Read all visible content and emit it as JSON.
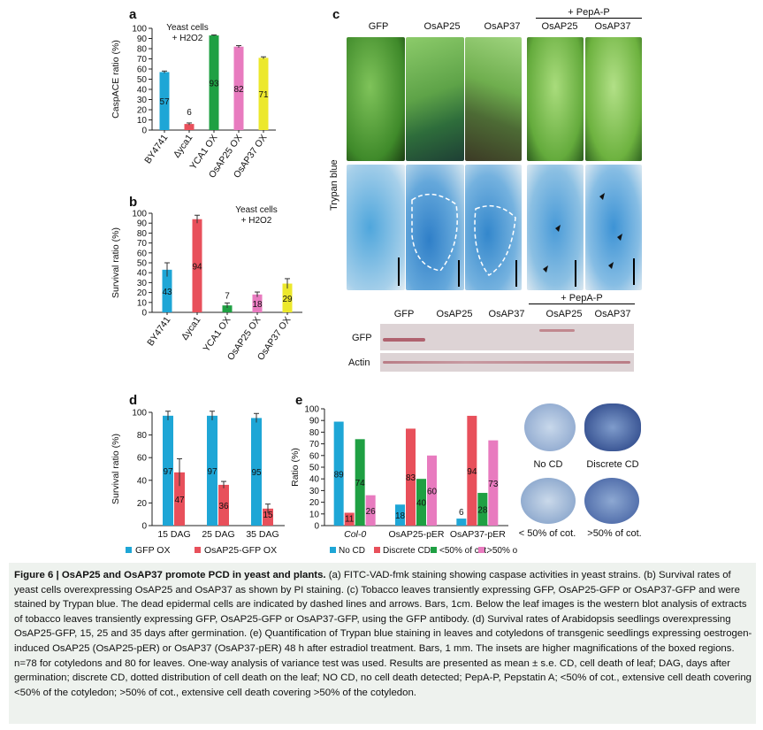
{
  "panels": {
    "a": {
      "label": "a"
    },
    "b": {
      "label": "b"
    },
    "c": {
      "label": "c"
    },
    "d": {
      "label": "d"
    },
    "e": {
      "label": "e"
    }
  },
  "chart_data": [
    {
      "id": "a",
      "type": "bar",
      "annotation": [
        "Yeast cells",
        "+ H2O2"
      ],
      "ylabel": "CaspACE ratio (%)",
      "ylim": [
        0,
        100
      ],
      "yticks": [
        0,
        10,
        20,
        30,
        40,
        50,
        60,
        70,
        80,
        90,
        100
      ],
      "categories": [
        "BY4741",
        "Δyca1",
        "YCA1 OX",
        "OsAP25 OX",
        "OsAP37 OX"
      ],
      "values": [
        57,
        6,
        93,
        82,
        71
      ],
      "errors": [
        1,
        1,
        0.5,
        1,
        1
      ],
      "colors": [
        "#1ea6d6",
        "#e8505b",
        "#1fa043",
        "#e87bbf",
        "#ece82c"
      ]
    },
    {
      "id": "b",
      "type": "bar",
      "annotation": [
        "Yeast cells",
        "+ H2O2"
      ],
      "ylabel": "Survival ratio (%)",
      "ylim": [
        0,
        100
      ],
      "yticks": [
        0,
        10,
        20,
        30,
        40,
        50,
        60,
        70,
        80,
        90,
        100
      ],
      "categories": [
        "BY4741",
        "Δyca1",
        "YCA1 OX",
        "OsAP25 OX",
        "OsAP37 OX"
      ],
      "values": [
        43,
        94,
        7,
        18,
        29
      ],
      "errors": [
        7,
        4,
        2.5,
        2.5,
        5
      ],
      "colors": [
        "#1ea6d6",
        "#e8505b",
        "#1fa043",
        "#e87bbf",
        "#ece82c"
      ]
    },
    {
      "id": "d",
      "type": "bar",
      "ylabel": "Survival ratio (%)",
      "ylim": [
        0,
        100
      ],
      "yticks": [
        0,
        20,
        40,
        60,
        80,
        100
      ],
      "categories": [
        "15 DAG",
        "25 DAG",
        "35 DAG"
      ],
      "series": [
        {
          "name": "GFP OX",
          "values": [
            97,
            97,
            95
          ],
          "errors": [
            4,
            4,
            4
          ],
          "color": "#1ea6d6"
        },
        {
          "name": "OsAP25-GFP OX",
          "values": [
            47,
            36,
            15
          ],
          "errors": [
            12,
            3,
            4
          ],
          "color": "#e8505b"
        }
      ]
    },
    {
      "id": "e",
      "type": "bar",
      "ylabel": "Ratio (%)",
      "ylim": [
        0,
        100
      ],
      "yticks": [
        0,
        10,
        20,
        30,
        40,
        50,
        60,
        70,
        80,
        90,
        100
      ],
      "categories": [
        "Col-0",
        "OsAP25-pER",
        "OsAP37-pER"
      ],
      "series": [
        {
          "name": "No CD",
          "values": [
            89,
            18,
            6
          ],
          "color": "#1ea6d6"
        },
        {
          "name": "Discrete CD",
          "values": [
            11,
            83,
            94
          ],
          "color": "#e8505b"
        },
        {
          "name": "<50% of cot.",
          "values": [
            74,
            40,
            28
          ],
          "color": "#1fa043"
        },
        {
          "name": ">50% of cot.",
          "values": [
            26,
            60,
            73
          ],
          "color": "#e87bbf"
        }
      ]
    }
  ],
  "panel_c": {
    "headers": [
      "GFP",
      "OsAP25",
      "OsAP37",
      "OsAP25",
      "OsAP37"
    ],
    "pepa_label": "+ PepA-P",
    "trypan_label": "Trypan blue",
    "blot_headers": [
      "GFP",
      "OsAP25",
      "OsAP37",
      "OsAP25",
      "OsAP37"
    ],
    "blot_pepa": "+ PepA-P",
    "blot_rows": [
      "GFP",
      "Actin"
    ]
  },
  "panel_e_images": {
    "labels": [
      "No CD",
      "Discrete CD",
      "< 50% of cot.",
      ">50% of cot."
    ]
  },
  "caption": {
    "title": "Figure 6 | OsAP25 and OsAP37 promote PCD in yeast and plants.",
    "body": " (a) FITC-VAD-fmk staining showing caspase activities in yeast strains. (b) Survival rates of yeast cells overexpressing OsAP25 and OsAP37 as shown by PI staining. (c) Tobacco leaves transiently expressing GFP, OsAP25-GFP or OsAP37-GFP and were stained by Trypan blue. The dead epidermal cells are indicated by dashed lines and arrows. Bars, 1cm. Below the leaf images is the western blot analysis of extracts of tobacco leaves transiently expressing GFP, OsAP25-GFP or OsAP37-GFP, using the GFP antibody. (d) Survival rates of Arabidopsis seedlings overexpressing OsAP25-GFP, 15, 25 and 35 days after germination. (e) Quantification of Trypan blue staining in leaves and cotyledons of transgenic seedlings expressing oestrogen-induced OsAP25 (OsAP25-pER) or OsAP37 (OsAP37-pER) 48 h after estradiol treatment. Bars, 1 mm. The insets are higher magnifications of the boxed regions. n=78 for cotyledons and 80 for leaves. One-way analysis of variance test was used. Results are presented as mean ± s.e. CD, cell death of leaf; DAG, days after germination; discrete CD, dotted distribution of cell death on the leaf; NO CD, no cell death detected; PepA-P, Pepstatin A; <50% of cot., extensive cell death covering <50% of the cotyledon; >50% of cot., extensive cell death covering >50% of the cotyledon."
  }
}
